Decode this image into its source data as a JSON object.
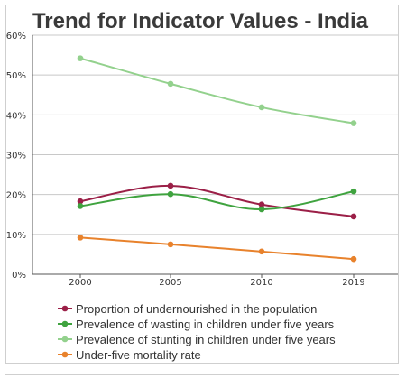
{
  "chart_data": {
    "type": "line",
    "title": "Trend for Indicator Values - India",
    "xlabel": "",
    "ylabel": "",
    "categories": [
      "2000",
      "2005",
      "2010",
      "2019"
    ],
    "yticks": [
      "0%",
      "10%",
      "20%",
      "30%",
      "40%",
      "50%",
      "60%"
    ],
    "ylim": [
      0,
      60
    ],
    "grid": true,
    "legend_position": "bottom",
    "series": [
      {
        "name": "Proportion of undernourished in the population",
        "color": "#9b1f47",
        "values": [
          18.3,
          22.2,
          17.5,
          14.5
        ]
      },
      {
        "name": "Prevalence of wasting in children under five years",
        "color": "#3fa33f",
        "values": [
          17.1,
          20.1,
          16.3,
          20.8
        ]
      },
      {
        "name": "Prevalence of stunting in children under five years",
        "color": "#93d18d",
        "values": [
          54.2,
          47.8,
          41.9,
          37.9
        ]
      },
      {
        "name": "Under-five mortality rate",
        "color": "#e8822c",
        "values": [
          9.2,
          7.5,
          5.7,
          3.8
        ]
      }
    ]
  }
}
